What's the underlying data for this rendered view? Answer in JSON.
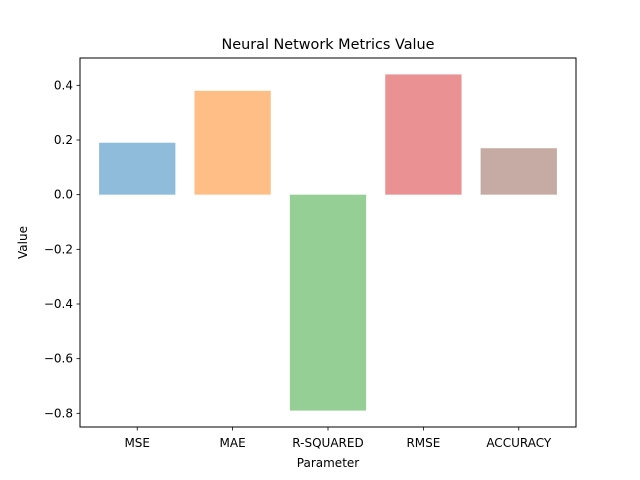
{
  "chart_data": {
    "type": "bar",
    "title": "Neural Network Metrics Value",
    "xlabel": "Parameter",
    "ylabel": "Value",
    "categories": [
      "MSE",
      "MAE",
      "R-SQUARED",
      "RMSE",
      "ACCURACY"
    ],
    "values": [
      0.19,
      0.38,
      -0.79,
      0.44,
      0.17
    ],
    "colors": [
      "#8fbcdb",
      "#ffbe86",
      "#95cf95",
      "#ea9293",
      "#c6aba4"
    ],
    "yticks": [
      -0.8,
      -0.6,
      -0.4,
      -0.2,
      0.0,
      0.2,
      0.4
    ],
    "ytick_labels": [
      "−0.8",
      "−0.6",
      "−0.4",
      "−0.2",
      "0.0",
      "0.2",
      "0.4"
    ],
    "ylim": [
      -0.85,
      0.5
    ],
    "grid": false,
    "legend": "none"
  }
}
